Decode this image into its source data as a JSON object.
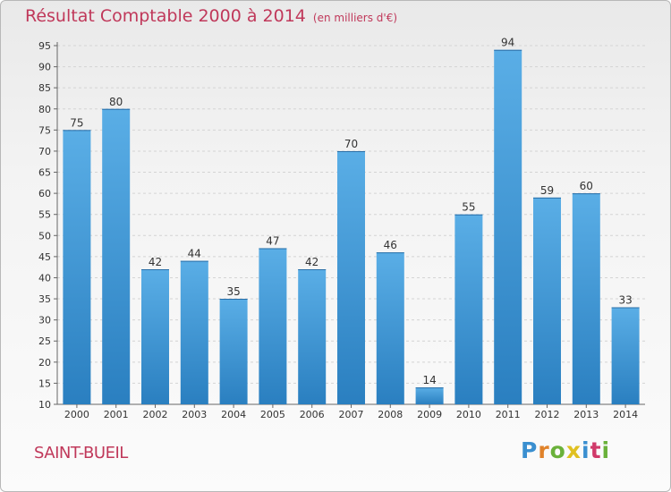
{
  "header": {
    "title": "Résultat Comptable 2000 à 2014",
    "subtitle": "(en milliers d'€)"
  },
  "footer": {
    "commune": "SAINT-BUEIL",
    "logo_letters": [
      "P",
      "r",
      "o",
      "x",
      "i",
      "t",
      "i"
    ]
  },
  "chart_data": {
    "type": "bar",
    "title": "Résultat Comptable 2000 à 2014",
    "subtitle": "(en milliers d'€)",
    "categories": [
      "2000",
      "2001",
      "2002",
      "2003",
      "2004",
      "2005",
      "2006",
      "2007",
      "2008",
      "2009",
      "2010",
      "2011",
      "2012",
      "2013",
      "2014"
    ],
    "values": [
      75,
      80,
      42,
      44,
      35,
      47,
      42,
      70,
      46,
      14,
      55,
      94,
      59,
      60,
      33
    ],
    "ylim": [
      10,
      95
    ],
    "yticks": [
      10,
      15,
      20,
      25,
      30,
      35,
      40,
      45,
      50,
      55,
      60,
      65,
      70,
      75,
      80,
      85,
      90,
      95
    ],
    "grid": true,
    "bar_color": "#3a93d4"
  }
}
